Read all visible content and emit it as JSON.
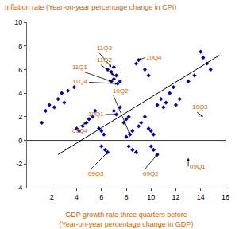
{
  "chart_data": {
    "type": "scatter",
    "ylabel": "Inflation rate (Year-on-year percentage change in CPI)",
    "xlabel": [
      "GDP growth rate three quarters before",
      "(Year-on-year percentage change in GDP)"
    ],
    "label_color": "#CC6600",
    "tick_color": "#000000",
    "background": "#FFFFFF",
    "xlim": [
      0,
      16
    ],
    "ylim": [
      -4,
      10
    ],
    "xticks": [
      2,
      4,
      6,
      8,
      10,
      12,
      14,
      16
    ],
    "yticks": [
      -4,
      -2,
      0,
      2,
      4,
      6,
      8,
      10
    ],
    "grid": false,
    "series": [
      {
        "type": "scatter",
        "color": "#0000BB",
        "marker": "diamond",
        "x": [
          1.2,
          1.5,
          1.8,
          2.2,
          2.5,
          2.8,
          3.0,
          3.3,
          3.8,
          4.0,
          4.2,
          4.5,
          4.8,
          5.0,
          5.3,
          5.5,
          5.8,
          6.0,
          6.2,
          6.0,
          6.3,
          6.5,
          6.5,
          6.8,
          7.0,
          6.8,
          7.0,
          7.2,
          7.3,
          7.5,
          7.0,
          7.2,
          7.5,
          7.8,
          8.0,
          8.2,
          8.0,
          8.3,
          8.5,
          8.2,
          8.5,
          8.8,
          9.0,
          9.2,
          9.5,
          9.8,
          10.0,
          10.2,
          10.0,
          10.2,
          10.5,
          10.5,
          10.8,
          11.0,
          11.2,
          11.5,
          11.8,
          12.0,
          12.3,
          13.0,
          13.5,
          14.0,
          14.2,
          14.5,
          14.8,
          9.5,
          9.8,
          8.8,
          9.0
        ],
        "values": [
          1.5,
          2.5,
          3.0,
          2.8,
          3.5,
          4.0,
          3.2,
          4.2,
          4.5,
          1.0,
          0.8,
          1.2,
          1.5,
          1.8,
          2.0,
          2.5,
          1.0,
          0.8,
          0.5,
          -0.5,
          -0.8,
          -1.0,
          6.0,
          5.8,
          6.2,
          5.0,
          5.2,
          5.5,
          4.8,
          5.0,
          2.5,
          2.2,
          2.8,
          1.5,
          1.8,
          2.0,
          0.3,
          0.5,
          0.8,
          -0.5,
          -0.8,
          -1.0,
          1.2,
          1.5,
          2.0,
          1.0,
          0.8,
          0.5,
          -0.5,
          -0.8,
          -1.2,
          3.0,
          3.5,
          2.8,
          3.2,
          4.0,
          4.5,
          3.0,
          3.5,
          5.0,
          5.5,
          7.5,
          7.0,
          6.5,
          6.0,
          6.0,
          5.5,
          6.5,
          6.8
        ]
      },
      {
        "type": "line",
        "color": "#000000",
        "line_style": "solid",
        "x": [
          2.5,
          15.5
        ],
        "values": [
          -1.2,
          7.2
        ]
      }
    ],
    "hline": {
      "value": 0,
      "color": "#000000"
    },
    "annotation_color": "#CC6600",
    "arrow_color": "#000000",
    "annotations": [
      {
        "text": "11Q3",
        "xy": [
          6.8,
          6.2
        ],
        "xytext": [
          5.5,
          7.8
        ]
      },
      {
        "text": "11Q2",
        "xy": [
          7.0,
          5.5
        ],
        "xytext": [
          5.5,
          6.8
        ]
      },
      {
        "text": "11Q1",
        "xy": [
          6.8,
          5.0
        ],
        "xytext": [
          3.5,
          6.2
        ]
      },
      {
        "text": "11Q4",
        "xy": [
          7.3,
          4.8
        ],
        "xytext": [
          3.5,
          5.0
        ]
      },
      {
        "text": "10Q4",
        "xy": [
          9.0,
          6.8
        ],
        "xytext": [
          9.5,
          7.0
        ]
      },
      {
        "text": "10Q2",
        "xy": [
          8.3,
          0.5
        ],
        "xytext": [
          6.8,
          4.2
        ]
      },
      {
        "text": "10Q1",
        "xy": [
          7.2,
          2.2
        ],
        "xytext": [
          4.8,
          2.2
        ]
      },
      {
        "text": "09Q4",
        "xy": [
          4.8,
          1.5
        ],
        "xytext": [
          3.5,
          0.8
        ]
      },
      {
        "text": "10Q3",
        "xy": [
          14.2,
          2.0
        ],
        "xytext": [
          13.2,
          2.8
        ]
      },
      {
        "text": "09Q3",
        "xy": [
          6.5,
          -1.0
        ],
        "xytext": [
          4.8,
          -2.8
        ]
      },
      {
        "text": "09Q2",
        "xy": [
          10.5,
          -1.2
        ],
        "xytext": [
          9.2,
          -2.8
        ]
      },
      {
        "text": "09Q1",
        "xy": [
          13.0,
          -1.5
        ],
        "xytext": [
          13.0,
          -2.2
        ]
      }
    ]
  }
}
